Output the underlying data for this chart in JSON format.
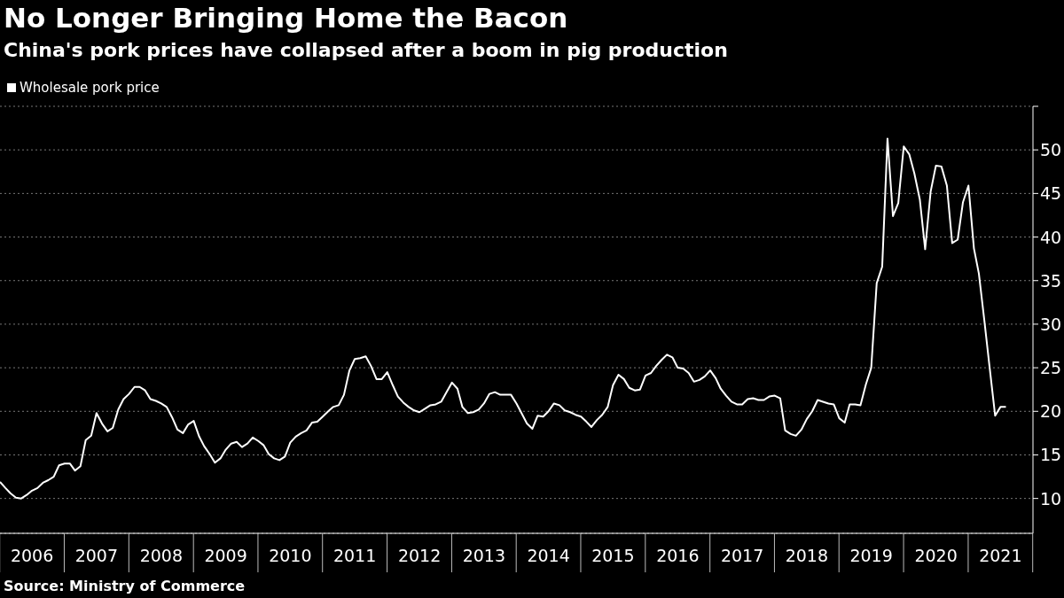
{
  "chart_data": {
    "type": "line",
    "title": "No Longer Bringing Home the Bacon",
    "subtitle": "China's pork prices have collapsed after a boom in pig production",
    "annotations": [
      "Source: Ministry of Commerce"
    ],
    "x": [
      "2006-01",
      "2006-02",
      "2006-03",
      "2006-04",
      "2006-05",
      "2006-06",
      "2006-07",
      "2006-08",
      "2006-09",
      "2006-10",
      "2006-11",
      "2006-12",
      "2007-01",
      "2007-02",
      "2007-03",
      "2007-04",
      "2007-05",
      "2007-06",
      "2007-07",
      "2007-08",
      "2007-09",
      "2007-10",
      "2007-11",
      "2007-12",
      "2008-01",
      "2008-02",
      "2008-03",
      "2008-04",
      "2008-05",
      "2008-06",
      "2008-07",
      "2008-08",
      "2008-09",
      "2008-10",
      "2008-11",
      "2008-12",
      "2009-01",
      "2009-02",
      "2009-03",
      "2009-04",
      "2009-05",
      "2009-06",
      "2009-07",
      "2009-08",
      "2009-09",
      "2009-10",
      "2009-11",
      "2009-12",
      "2010-01",
      "2010-02",
      "2010-03",
      "2010-04",
      "2010-05",
      "2010-06",
      "2010-07",
      "2010-08",
      "2010-09",
      "2010-10",
      "2010-11",
      "2010-12",
      "2011-01",
      "2011-02",
      "2011-03",
      "2011-04",
      "2011-05",
      "2011-06",
      "2011-07",
      "2011-08",
      "2011-09",
      "2011-10",
      "2011-11",
      "2011-12",
      "2012-01",
      "2012-02",
      "2012-03",
      "2012-04",
      "2012-05",
      "2012-06",
      "2012-07",
      "2012-08",
      "2012-09",
      "2012-10",
      "2012-11",
      "2012-12",
      "2013-01",
      "2013-02",
      "2013-03",
      "2013-04",
      "2013-05",
      "2013-06",
      "2013-07",
      "2013-08",
      "2013-09",
      "2013-10",
      "2013-11",
      "2013-12",
      "2014-01",
      "2014-02",
      "2014-03",
      "2014-04",
      "2014-05",
      "2014-06",
      "2014-07",
      "2014-08",
      "2014-09",
      "2014-10",
      "2014-11",
      "2014-12",
      "2015-01",
      "2015-02",
      "2015-03",
      "2015-04",
      "2015-05",
      "2015-06",
      "2015-07",
      "2015-08",
      "2015-09",
      "2015-10",
      "2015-11",
      "2015-12",
      "2016-01",
      "2016-02",
      "2016-03",
      "2016-04",
      "2016-05",
      "2016-06",
      "2016-07",
      "2016-08",
      "2016-09",
      "2016-10",
      "2016-11",
      "2016-12",
      "2017-01",
      "2017-02",
      "2017-03",
      "2017-04",
      "2017-05",
      "2017-06",
      "2017-07",
      "2017-08",
      "2017-09",
      "2017-10",
      "2017-11",
      "2017-12",
      "2018-01",
      "2018-02",
      "2018-03",
      "2018-04",
      "2018-05",
      "2018-06",
      "2018-07",
      "2018-08",
      "2018-09",
      "2018-10",
      "2018-11",
      "2018-12",
      "2019-01",
      "2019-02",
      "2019-03",
      "2019-04",
      "2019-05",
      "2019-06",
      "2019-07",
      "2019-08",
      "2019-09",
      "2019-10",
      "2019-11",
      "2019-12",
      "2020-01",
      "2020-02",
      "2020-03",
      "2020-04",
      "2020-05",
      "2020-06",
      "2020-07",
      "2020-08",
      "2020-09",
      "2020-10",
      "2020-11",
      "2020-12",
      "2021-01",
      "2021-02",
      "2021-03",
      "2021-04",
      "2021-05",
      "2021-06",
      "2021-07",
      "2021-08"
    ],
    "series": [
      {
        "name": "Wholesale pork price",
        "color": "#ffffff",
        "values": [
          11.9,
          11.2,
          10.6,
          10.1,
          10.0,
          10.4,
          10.9,
          11.2,
          11.8,
          12.1,
          12.5,
          13.8,
          14.0,
          14.0,
          13.2,
          13.7,
          16.7,
          17.2,
          19.8,
          18.6,
          17.7,
          18.1,
          20.2,
          21.4,
          22.0,
          22.8,
          22.8,
          22.4,
          21.4,
          21.2,
          20.9,
          20.5,
          19.3,
          17.9,
          17.5,
          18.5,
          18.9,
          17.1,
          16.0,
          15.1,
          14.1,
          14.6,
          15.6,
          16.3,
          16.5,
          15.9,
          16.3,
          17.0,
          16.6,
          16.1,
          15.1,
          14.6,
          14.4,
          14.8,
          16.4,
          17.1,
          17.5,
          17.8,
          18.7,
          18.8,
          19.4,
          20.0,
          20.5,
          20.7,
          21.9,
          24.7,
          26.0,
          26.1,
          26.3,
          25.2,
          23.7,
          23.7,
          24.5,
          23.0,
          21.7,
          21.0,
          20.5,
          20.1,
          19.9,
          20.3,
          20.7,
          20.8,
          21.1,
          22.2,
          23.3,
          22.6,
          20.5,
          19.8,
          19.9,
          20.2,
          20.9,
          22.0,
          22.2,
          21.9,
          21.9,
          21.9,
          20.9,
          19.7,
          18.6,
          18.0,
          19.5,
          19.4,
          20.0,
          20.9,
          20.7,
          20.1,
          19.9,
          19.6,
          19.4,
          18.8,
          18.2,
          19.0,
          19.6,
          20.5,
          23.0,
          24.2,
          23.7,
          22.7,
          22.4,
          22.5,
          24.1,
          24.4,
          25.2,
          25.9,
          26.5,
          26.2,
          25.0,
          24.9,
          24.4,
          23.4,
          23.6,
          24.0,
          24.7,
          23.8,
          22.6,
          21.8,
          21.1,
          20.8,
          20.8,
          21.4,
          21.5,
          21.3,
          21.3,
          21.7,
          21.8,
          21.5,
          17.8,
          17.4,
          17.2,
          17.9,
          19.1,
          20.0,
          21.3,
          21.1,
          20.9,
          20.8,
          19.2,
          18.7,
          20.8,
          20.8,
          20.7,
          23.1,
          25.0,
          34.7,
          36.6,
          51.3,
          42.4,
          43.9,
          50.4,
          49.5,
          47.3,
          44.3,
          38.6,
          45.2,
          48.2,
          48.1,
          45.9,
          39.3,
          39.7,
          44.0,
          45.9,
          38.7,
          35.8,
          30.4,
          25.0,
          19.5,
          20.5,
          20.5
        ]
      }
    ],
    "xlim": [
      "2006-01",
      "2022-01"
    ],
    "xticks": [
      {
        "value": "2006-07",
        "label": "2006"
      },
      {
        "value": "2007-07",
        "label": "2007"
      },
      {
        "value": "2008-07",
        "label": "2008"
      },
      {
        "value": "2009-07",
        "label": "2009"
      },
      {
        "value": "2010-07",
        "label": "2010"
      },
      {
        "value": "2011-07",
        "label": "2011"
      },
      {
        "value": "2012-07",
        "label": "2012"
      },
      {
        "value": "2013-07",
        "label": "2013"
      },
      {
        "value": "2014-07",
        "label": "2014"
      },
      {
        "value": "2015-07",
        "label": "2015"
      },
      {
        "value": "2016-07",
        "label": "2016"
      },
      {
        "value": "2017-07",
        "label": "2017"
      },
      {
        "value": "2018-07",
        "label": "2018"
      },
      {
        "value": "2019-07",
        "label": "2019"
      },
      {
        "value": "2020-07",
        "label": "2020"
      },
      {
        "value": "2021-07",
        "label": "2021"
      }
    ],
    "ylim": [
      6,
      55
    ],
    "yticks": [
      {
        "value": 55,
        "label": null
      },
      50,
      45,
      40,
      35,
      30,
      25,
      20,
      15,
      10
    ],
    "grid": "y",
    "legend": "top left",
    "marker": "none",
    "line_style": "solid"
  }
}
